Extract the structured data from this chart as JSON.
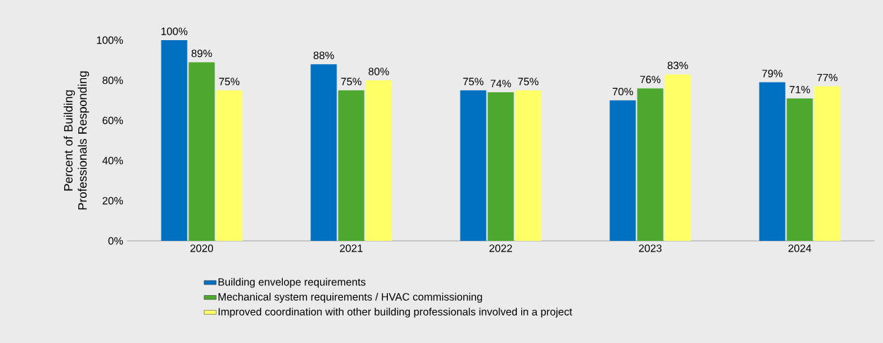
{
  "chart_data": {
    "type": "bar",
    "ylabel": "Percent of Building Professionals Responding",
    "categories": [
      "2020",
      "2021",
      "2022",
      "2023",
      "2024"
    ],
    "series": [
      {
        "name": "Building envelope requirements",
        "color": "#0070c0",
        "values": [
          100,
          88,
          75,
          70,
          79
        ],
        "value_labels": [
          "100%",
          "88%",
          "75%",
          "70%",
          "79%"
        ]
      },
      {
        "name": "Mechanical system requirements / HVAC commissioning",
        "color": "#4ea72e",
        "values": [
          89,
          75,
          74,
          76,
          71
        ],
        "value_labels": [
          "89%",
          "75%",
          "74%",
          "76%",
          "71%"
        ]
      },
      {
        "name": "Improved coordination with other building professionals involved in a project",
        "color": "#ffff66",
        "values": [
          75,
          80,
          75,
          83,
          77
        ],
        "value_labels": [
          "75%",
          "80%",
          "75%",
          "83%",
          "77%"
        ]
      }
    ],
    "ylim": [
      0,
      100
    ],
    "yticks": [
      {
        "value": 0,
        "label": "0%"
      },
      {
        "value": 20,
        "label": "20%"
      },
      {
        "value": 40,
        "label": "40%"
      },
      {
        "value": 60,
        "label": "60%"
      },
      {
        "value": 80,
        "label": "80%"
      },
      {
        "value": 100,
        "label": "100%"
      }
    ],
    "grid": false,
    "legend": "bottom"
  }
}
